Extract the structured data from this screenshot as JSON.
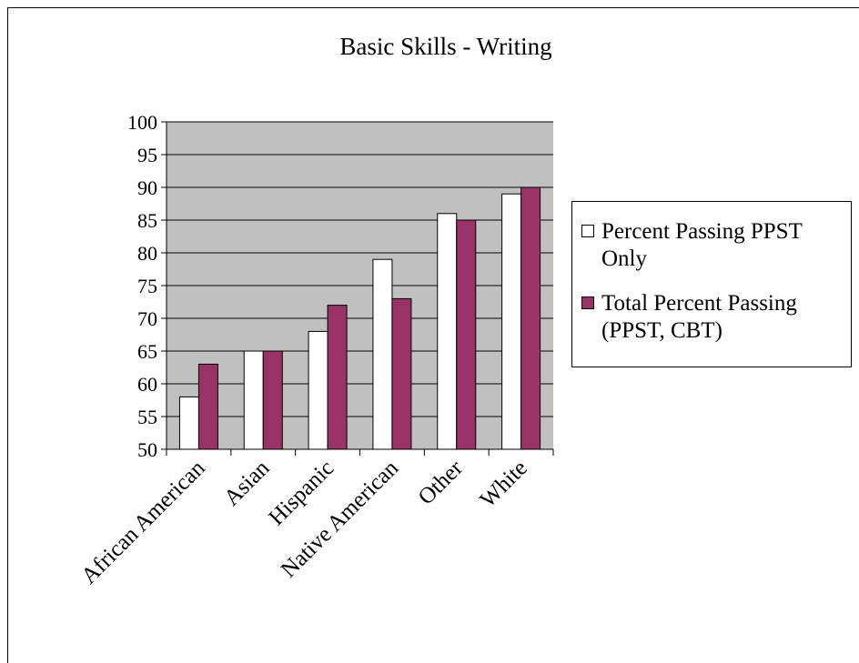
{
  "chart_data": {
    "type": "bar",
    "title": "Basic Skills - Writing",
    "xlabel": "",
    "ylabel": "",
    "categories": [
      "African American",
      "Asian",
      "Hispanic",
      "Native American",
      "Other",
      "White"
    ],
    "series": [
      {
        "name": "Percent Passing PPST Only",
        "values": [
          58,
          65,
          68,
          79,
          86,
          89
        ],
        "color": "#ffffff"
      },
      {
        "name": "Total Percent Passing (PPST, CBT)",
        "values": [
          63,
          65,
          72,
          73,
          85,
          90
        ],
        "color": "#993366"
      }
    ],
    "ylim": [
      50,
      100
    ],
    "yticks": [
      "50",
      "55",
      "60",
      "65",
      "70",
      "75",
      "80",
      "85",
      "90",
      "95",
      "100"
    ],
    "grid": true,
    "plot_background": "#c0c0c0",
    "legend_position": "right"
  }
}
